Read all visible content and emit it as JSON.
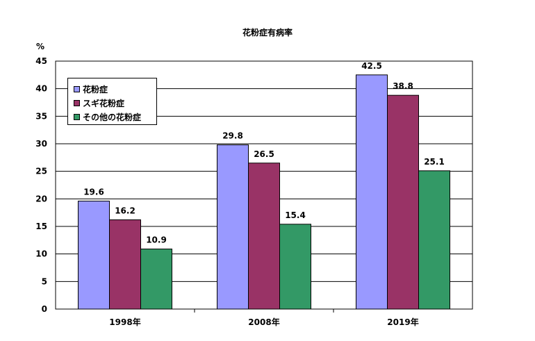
{
  "chart_data": {
    "type": "bar",
    "title": "花粉症有病率",
    "unit_label": "%",
    "categories": [
      "1998年",
      "2008年",
      "2019年"
    ],
    "series": [
      {
        "name": "花粉症",
        "color": "#9999ff",
        "values": [
          19.6,
          29.8,
          42.5
        ]
      },
      {
        "name": "スギ花粉症",
        "color": "#993366",
        "values": [
          16.2,
          26.5,
          38.8
        ]
      },
      {
        "name": "その他の花粉症",
        "color": "#339966",
        "values": [
          10.9,
          15.4,
          25.1
        ]
      }
    ],
    "ylim": [
      0,
      45
    ],
    "yticks": [
      0,
      5,
      10,
      15,
      20,
      25,
      30,
      35,
      40,
      45
    ],
    "grid": true,
    "legend_position": "top-left"
  }
}
